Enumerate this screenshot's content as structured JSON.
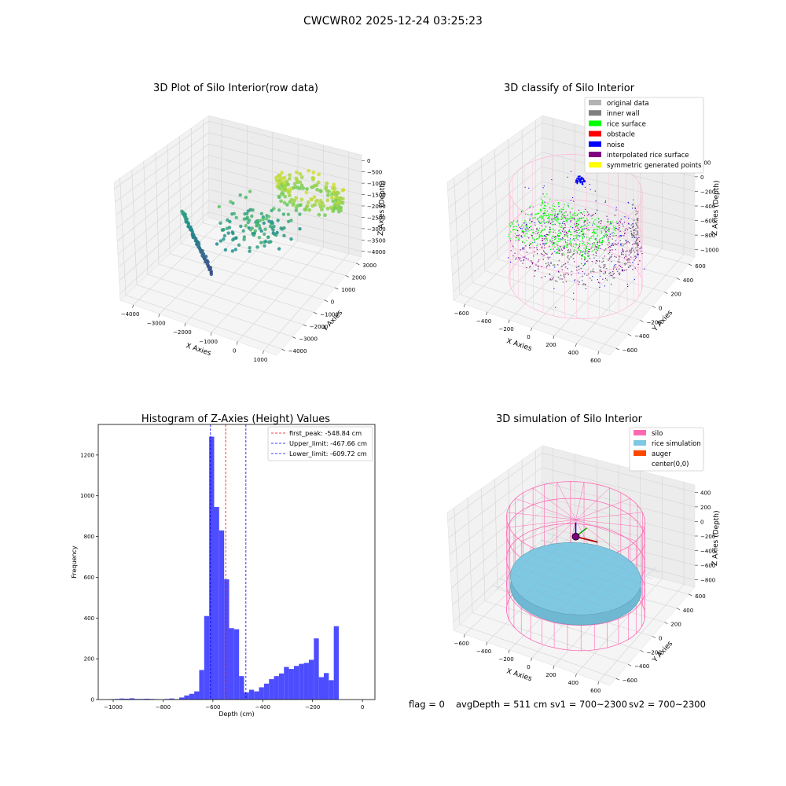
{
  "suptitle": "CWCWR02 2025-12-24 03:25:23",
  "colors": {
    "original": "#b3b3b3",
    "inner_wall": "#808080",
    "rice_surface": "#00ff00",
    "obstacle": "#ff0000",
    "noise": "#0000ff",
    "interpolated": "#800080",
    "symmetric": "#ffff00",
    "silo": "#ff69b4",
    "rice_sim": "#7ec8e3",
    "auger": "#ff4500",
    "hist_bar": "#4d4dff"
  },
  "chart_data": [
    {
      "type": "scatter",
      "subtype": "3d",
      "title": "3D Plot of Silo Interior(row data)",
      "xlabel": "X Axies",
      "ylabel": "Y Axies",
      "zlabel": "Z Axies (Depth)",
      "xticks": [
        "−4000",
        "−3000",
        "−2000",
        "−1000",
        "0",
        "1000"
      ],
      "yticks": [
        "−4000",
        "−3000",
        "−2000",
        "−1000",
        "0",
        "1000",
        "2000",
        "3000"
      ],
      "zticks": [
        "0",
        "−500",
        "−1000",
        "−1500",
        "−2000",
        "−2500",
        "−3000",
        "−3500",
        "−4000"
      ],
      "xlim": [
        -4500,
        1500
      ],
      "ylim": [
        -4500,
        3500
      ],
      "zlim": [
        -4200,
        300
      ],
      "colormap": "viridis-by-depth"
    },
    {
      "type": "scatter",
      "subtype": "3d",
      "title": "3D classify of Silo Interior",
      "xlabel": "X Axies",
      "ylabel": "Y Axies",
      "zlabel": "Z Axies (Depth)",
      "xticks": [
        "−600",
        "−400",
        "−200",
        "0",
        "200",
        "400",
        "600"
      ],
      "yticks": [
        "−600",
        "−400",
        "−200",
        "0",
        "200",
        "400",
        "600"
      ],
      "zticks": [
        "200",
        "0",
        "−200",
        "−400",
        "−600",
        "−800",
        "−1000"
      ],
      "xlim": [
        -700,
        700
      ],
      "ylim": [
        -700,
        700
      ],
      "zlim": [
        -1050,
        250
      ],
      "legend_position": "upper-right",
      "legend": [
        {
          "label": "original data",
          "color": "#b3b3b3"
        },
        {
          "label": "inner wall",
          "color": "#808080"
        },
        {
          "label": "rice surface",
          "color": "#00ff00"
        },
        {
          "label": "obstacle",
          "color": "#ff0000"
        },
        {
          "label": "noise",
          "color": "#0000ff"
        },
        {
          "label": "interpolated rice surface",
          "color": "#800080"
        },
        {
          "label": "symmetric generated points",
          "color": "#ffff00"
        }
      ]
    },
    {
      "type": "bar",
      "subtype": "histogram",
      "title": "Histogram of Z-Axies (Height) Values",
      "xlabel": "Depth (cm)",
      "ylabel": "Frequency",
      "xlim": [
        -1060,
        50
      ],
      "ylim": [
        0,
        1350
      ],
      "xticks": [
        -1000,
        -800,
        -600,
        -400,
        -200,
        0
      ],
      "yticks": [
        0,
        200,
        400,
        600,
        800,
        1000,
        1200
      ],
      "bin_start": -1015,
      "bin_width": 20,
      "values": [
        2,
        3,
        5,
        4,
        6,
        3,
        3,
        4,
        3,
        2,
        0,
        3,
        5,
        2,
        10,
        20,
        28,
        40,
        145,
        410,
        1290,
        945,
        830,
        590,
        350,
        345,
        115,
        35,
        48,
        40,
        60,
        78,
        100,
        115,
        128,
        160,
        150,
        165,
        175,
        180,
        195,
        300,
        110,
        130,
        95,
        360
      ],
      "legend_position": "upper-right",
      "vlines": [
        {
          "x": -548.84,
          "label": "first_peak: -548.84 cm",
          "color": "#ff0000"
        },
        {
          "x": -467.66,
          "label": "Upper_limit: -467.66 cm",
          "color": "#0000ff"
        },
        {
          "x": -609.72,
          "label": "Lower_limit: -609.72 cm",
          "color": "#0000ff"
        }
      ]
    },
    {
      "type": "scatter",
      "subtype": "3d-surface",
      "title": "3D simulation of Silo Interior",
      "xlabel": "X Axies",
      "ylabel": "Y Axies",
      "zlabel": "Z Axies (Depth)",
      "xticks": [
        "−600",
        "−400",
        "−200",
        "0",
        "200",
        "400",
        "600"
      ],
      "yticks": [
        "−600",
        "−400",
        "−200",
        "0",
        "200",
        "400",
        "600"
      ],
      "zticks": [
        "400",
        "200",
        "0",
        "−200",
        "−400",
        "−600",
        "−800"
      ],
      "xlim": [
        -700,
        700
      ],
      "ylim": [
        -700,
        700
      ],
      "zlim": [
        -950,
        450
      ],
      "legend_position": "upper-right",
      "legend": [
        {
          "label": "silo",
          "color": "#ff69b4"
        },
        {
          "label": "rice simulation",
          "color": "#7ec8e3"
        },
        {
          "label": "auger",
          "color": "#ff4500"
        },
        {
          "label": "center(0,0)",
          "color": "#ffffff"
        }
      ]
    }
  ],
  "footer": {
    "flag": "flag = 0",
    "avg": "avgDepth = 511 cm",
    "sv1": "sv1 = 700~2300",
    "sv2": "sv2 = 700~2300"
  }
}
